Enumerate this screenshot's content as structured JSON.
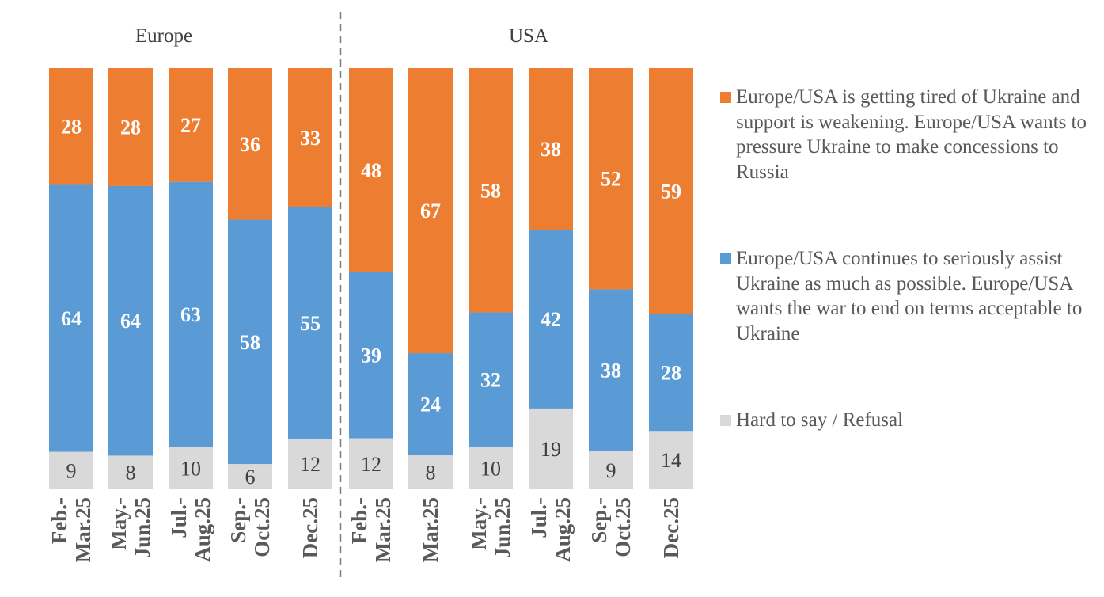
{
  "chart_data": {
    "type": "bar",
    "stacked": true,
    "groups": [
      {
        "name": "Europe",
        "categories": [
          [
            "Feb.-",
            "Mar.25"
          ],
          [
            "May.-",
            "Jun.25"
          ],
          [
            "Jul.-",
            "Aug.25"
          ],
          [
            "Sep.-",
            "Oct.25"
          ],
          [
            "Dec.25"
          ]
        ]
      },
      {
        "name": "USA",
        "categories": [
          [
            "Feb.-",
            "Mar.25"
          ],
          [
            "Mar.25"
          ],
          [
            "May.-",
            "Jun.25"
          ],
          [
            "Jul.-",
            "Aug.25"
          ],
          [
            "Sep.-",
            "Oct.25"
          ],
          [
            "Dec.25"
          ]
        ]
      }
    ],
    "series": [
      {
        "name": "Hard to say / Refusal",
        "color": "#D9D9D9",
        "values": [
          9,
          8,
          10,
          6,
          12,
          12,
          8,
          10,
          19,
          9,
          14
        ]
      },
      {
        "name": "Europe/USA continues to seriously assist Ukraine as much as possible. Europe/USA wants the war to end on terms acceptable to Ukraine",
        "color": "#5B9BD5",
        "values": [
          64,
          64,
          63,
          58,
          55,
          39,
          24,
          32,
          42,
          38,
          28
        ]
      },
      {
        "name": "Europe/USA is getting tired of Ukraine and support is weakening. Europe/USA wants to pressure Ukraine to make concessions to Russia",
        "color": "#ED7D31",
        "values": [
          28,
          28,
          27,
          36,
          33,
          48,
          67,
          58,
          38,
          52,
          59
        ]
      }
    ],
    "legend_position": "right",
    "grid": false,
    "unit": "%"
  }
}
